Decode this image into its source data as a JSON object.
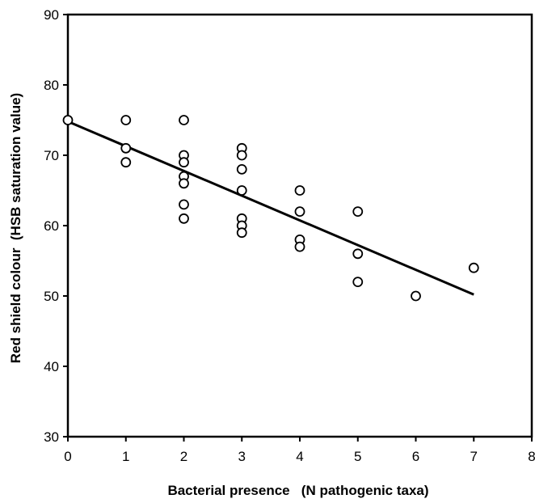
{
  "chart_data": {
    "type": "scatter",
    "title": "",
    "xlabel": "Bacterial presence   (N pathogenic taxa)",
    "ylabel": "Red shield colour  (HSB saturation value)",
    "xlim": [
      0,
      8
    ],
    "ylim": [
      30,
      90
    ],
    "x_ticks": [
      "0",
      "1",
      "2",
      "3",
      "4",
      "5",
      "6",
      "7",
      "8"
    ],
    "y_ticks": [
      "30",
      "40",
      "50",
      "60",
      "70",
      "80",
      "90"
    ],
    "grid": false,
    "legend": "none",
    "points": [
      {
        "x": 0,
        "y": 75
      },
      {
        "x": 1,
        "y": 75
      },
      {
        "x": 1,
        "y": 71
      },
      {
        "x": 1,
        "y": 69
      },
      {
        "x": 2,
        "y": 75
      },
      {
        "x": 2,
        "y": 70
      },
      {
        "x": 2,
        "y": 69
      },
      {
        "x": 2,
        "y": 67
      },
      {
        "x": 2,
        "y": 66
      },
      {
        "x": 2,
        "y": 63
      },
      {
        "x": 2,
        "y": 61
      },
      {
        "x": 3,
        "y": 71
      },
      {
        "x": 3,
        "y": 70
      },
      {
        "x": 3,
        "y": 68
      },
      {
        "x": 3,
        "y": 65
      },
      {
        "x": 3,
        "y": 61
      },
      {
        "x": 3,
        "y": 60
      },
      {
        "x": 3,
        "y": 59
      },
      {
        "x": 4,
        "y": 65
      },
      {
        "x": 4,
        "y": 62
      },
      {
        "x": 4,
        "y": 58
      },
      {
        "x": 4,
        "y": 57
      },
      {
        "x": 5,
        "y": 62
      },
      {
        "x": 5,
        "y": 56
      },
      {
        "x": 5,
        "y": 52
      },
      {
        "x": 6,
        "y": 50
      },
      {
        "x": 7,
        "y": 54
      }
    ],
    "trendline": {
      "x": [
        0,
        7
      ],
      "y": [
        74.8,
        50.2
      ]
    },
    "colors": {
      "marker_stroke": "#000000",
      "marker_fill": "#ffffff",
      "line": "#000000"
    }
  }
}
